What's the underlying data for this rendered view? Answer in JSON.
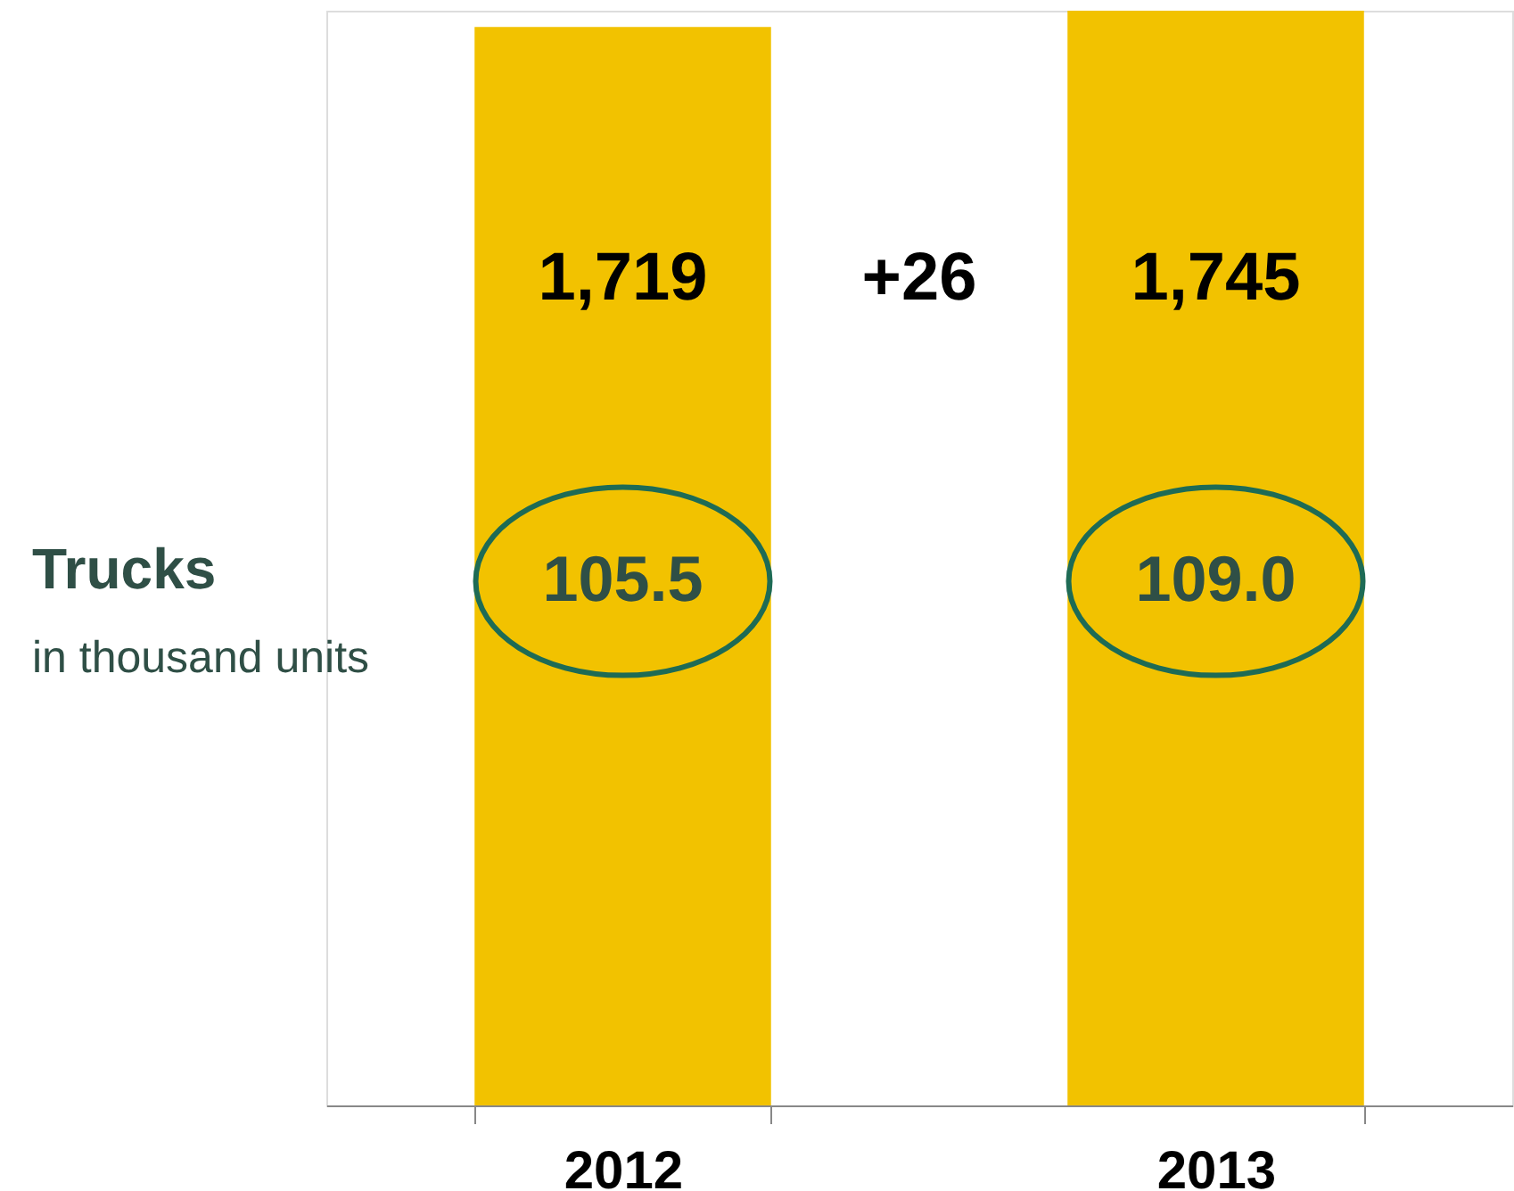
{
  "chart_data": {
    "type": "bar",
    "categories": [
      "2012",
      "2013"
    ],
    "values": [
      1719,
      1745
    ],
    "value_labels": [
      "1,719",
      "1,745"
    ],
    "color": "#f2c200",
    "grid": false,
    "tick_labels": "x",
    "annotations": [
      "Trucks",
      "in thousand units",
      "+26",
      "105.5",
      "109.0"
    ]
  }
}
